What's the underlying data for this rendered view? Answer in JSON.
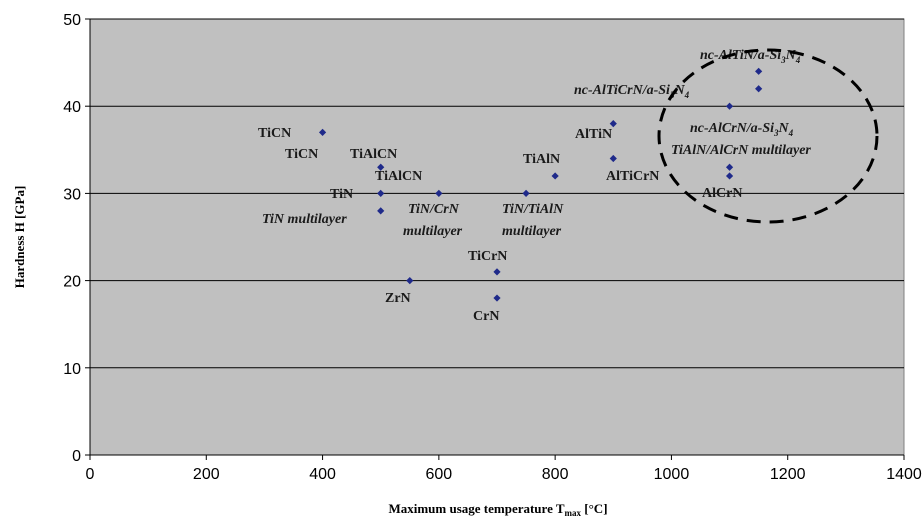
{
  "chart_data": {
    "type": "scatter",
    "title": "",
    "xlabel": "Maximum usage temperature T",
    "xlabel_sub": "max",
    "xlabel_unit": " [°C]",
    "ylabel": "Hardness H [GPa]",
    "xlim": [
      0,
      1400
    ],
    "ylim": [
      0,
      50
    ],
    "xticks": [
      "0",
      "200",
      "400",
      "600",
      "800",
      "1000",
      "1200",
      "1400"
    ],
    "yticks": [
      "0",
      "10",
      "20",
      "30",
      "40",
      "50"
    ],
    "grid": "horizontal",
    "colors": {
      "plot_bg": "#c0c0c0",
      "marker": "#1f2a8a",
      "grid": "#000000",
      "circle": "#000000"
    },
    "points": [
      {
        "x": 400,
        "y": 37,
        "label": "TiCN"
      },
      {
        "x": 500,
        "y": 33,
        "label": "TiAlCN"
      },
      {
        "x": 500,
        "y": 30,
        "label": "TiN"
      },
      {
        "x": 500,
        "y": 28,
        "label": "TiN multilayer"
      },
      {
        "x": 550,
        "y": 20,
        "label": "ZrN"
      },
      {
        "x": 600,
        "y": 30,
        "label": "TiN/CrN multilayer"
      },
      {
        "x": 700,
        "y": 21,
        "label": "TiCrN"
      },
      {
        "x": 700,
        "y": 18,
        "label": "CrN"
      },
      {
        "x": 750,
        "y": 30,
        "label": "TiN/TiAlN multilayer"
      },
      {
        "x": 800,
        "y": 32,
        "label": "TiAlN"
      },
      {
        "x": 900,
        "y": 38,
        "label": "AlTiN"
      },
      {
        "x": 900,
        "y": 34,
        "label": "AlTiCrN"
      },
      {
        "x": 1100,
        "y": 40,
        "label": "nc-AlTiCrN/a-Si3N4"
      },
      {
        "x": 1100,
        "y": 33,
        "label": "TiAlN/AlCrN multilayer"
      },
      {
        "x": 1100,
        "y": 32,
        "label": "AlCrN"
      },
      {
        "x": 1150,
        "y": 44,
        "label": "nc-AlTiN/a-Si3N4"
      },
      {
        "x": 1150,
        "y": 42,
        "label": "nc-AlCrN/a-Si3N4"
      }
    ],
    "annotations": [
      {
        "text": "TiCN"
      },
      {
        "text": "TiAlCN"
      },
      {
        "text": "TiN"
      },
      {
        "text": "TiAlCN"
      },
      {
        "text": "TiN multilayer"
      },
      {
        "text": "TiN/CrN"
      },
      {
        "text": "multilayer"
      },
      {
        "text": "TiN/TiAlN"
      },
      {
        "text": "multilayer"
      },
      {
        "text": "TiCrN"
      },
      {
        "text": "ZrN"
      },
      {
        "text": "CrN"
      },
      {
        "text": "TiAlN"
      },
      {
        "text": "AlTiN"
      },
      {
        "text": "AlTiCrN"
      },
      {
        "text": "AlCrN"
      },
      {
        "text": "TiAlN/AlCrN multilayer"
      },
      {
        "text": "TiCN"
      },
      {
        "main": "nc-AlTiN/a-Si",
        "sub1": "3",
        "mid": "N",
        "sub2": "4"
      },
      {
        "main": "nc-AlTiCrN/a-Si",
        "sub1": "3",
        "mid": "N",
        "sub2": "4"
      },
      {
        "main": "nc-AlCrN/a-Si",
        "sub1": "3",
        "mid": "N",
        "sub2": "4"
      }
    ]
  }
}
